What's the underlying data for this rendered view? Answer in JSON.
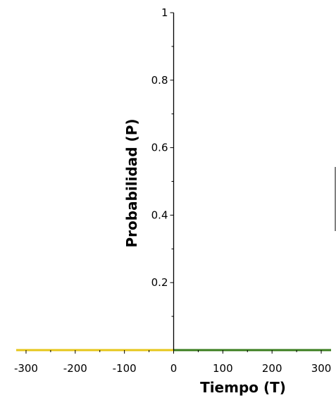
{
  "chart_data": {
    "type": "line",
    "xlabel": "Tiempo (T)",
    "ylabel": "Probabilidad (P)",
    "xlim": [
      -320,
      320
    ],
    "ylim": [
      0,
      1
    ],
    "x_ticks": [
      -300,
      -200,
      -100,
      0,
      100,
      200,
      300
    ],
    "y_ticks": [
      0.2,
      0.4,
      0.6,
      0.8,
      1
    ],
    "grid": false,
    "series": [
      {
        "color": "#e6c619",
        "x": [
          -320,
          0
        ],
        "y": [
          0,
          0
        ]
      },
      {
        "color": "#3a7d1e",
        "x": [
          0,
          320
        ],
        "y": [
          0,
          0
        ]
      }
    ]
  }
}
